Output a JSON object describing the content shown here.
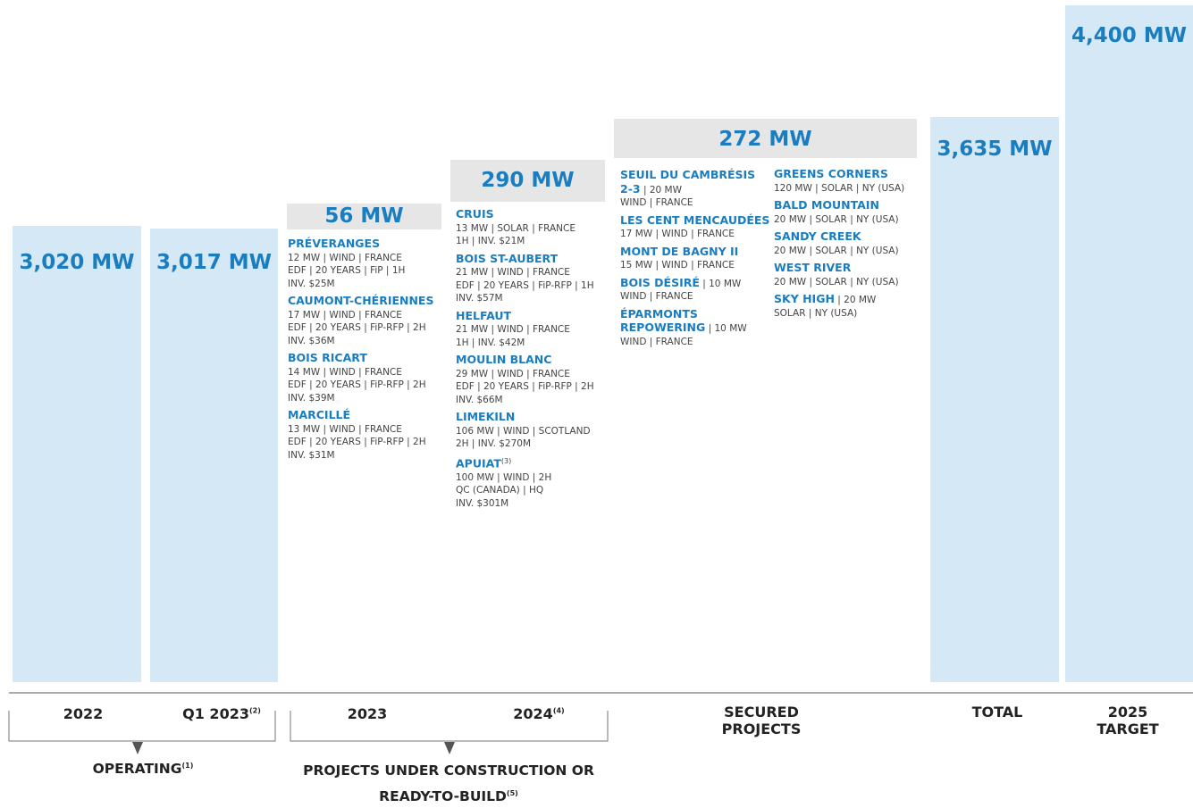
{
  "columns": [
    {
      "value": "3,020 MW",
      "category": "2022"
    },
    {
      "value": "3,017 MW",
      "category": "Q1 2023",
      "sup": "(2)"
    },
    {
      "value": "56 MW",
      "category": "2023"
    },
    {
      "value": "290 MW",
      "category": "2024",
      "sup": "(4)"
    },
    {
      "value": "272 MW",
      "category": "SECURED PROJECTS"
    },
    {
      "value": "3,635 MW",
      "category": "TOTAL"
    },
    {
      "value": "4,400 MW",
      "category": "2025 TARGET"
    }
  ],
  "projects": [
    [
      {
        "name": "PRÉVERANGES",
        "lines": [
          "12 MW | WIND | FRANCE",
          "EDF | 20 YEARS | FiP | 1H",
          "INV. $25M"
        ]
      },
      {
        "name": "CAUMONT-CHÉRIENNES",
        "lines": [
          "17 MW | WIND | FRANCE",
          "EDF | 20 YEARS | FiP-RFP | 2H",
          "INV. $36M"
        ]
      },
      {
        "name": "BOIS RICART",
        "lines": [
          "14 MW | WIND | FRANCE",
          "EDF | 20 YEARS | FiP-RFP | 2H",
          "INV. $39M"
        ]
      },
      {
        "name": "MARCILLÉ",
        "lines": [
          "13 MW | WIND | FRANCE",
          "EDF | 20 YEARS | FiP-RFP | 2H",
          "INV. $31M"
        ]
      }
    ],
    [
      {
        "name": "CRUIS",
        "lines": [
          "13 MW | SOLAR | FRANCE",
          "1H | INV. $21M"
        ]
      },
      {
        "name": "BOIS ST-AUBERT",
        "lines": [
          "21 MW | WIND | FRANCE",
          "EDF | 20 YEARS | FiP-RFP | 1H",
          "INV. $57M"
        ]
      },
      {
        "name": "HELFAUT",
        "lines": [
          "21 MW | WIND | FRANCE",
          "1H | INV. $42M"
        ]
      },
      {
        "name": "MOULIN BLANC",
        "lines": [
          "29 MW | WIND | FRANCE",
          "EDF | 20 YEARS | FiP-RFP | 2H",
          "INV. $66M"
        ]
      },
      {
        "name": "LIMEKILN",
        "lines": [
          "106 MW | WIND | SCOTLAND",
          "2H | INV. $270M"
        ]
      },
      {
        "name": "APUIAT",
        "sup": "(3)",
        "lines": [
          "100 MW | WIND | 2H",
          "QC (CANADA) | HQ",
          "INV. $301M"
        ]
      }
    ],
    [
      {
        "name": "SEUIL DU CAMBRÉSIS 2-3",
        "inline": "| 20 MW",
        "lines": [
          "WIND | FRANCE"
        ]
      },
      {
        "name": "LES CENT MENCAUDÉES",
        "lines": [
          "17 MW | WIND | FRANCE"
        ]
      },
      {
        "name": "MONT DE BAGNY II",
        "lines": [
          "15 MW | WIND | FRANCE"
        ]
      },
      {
        "name": "BOIS DÉSIRÉ",
        "inline": "| 10 MW",
        "lines": [
          "WIND | FRANCE"
        ]
      },
      {
        "name": "ÉPARMONTS REPOWERING",
        "inline": "| 10 MW",
        "lines": [
          "WIND | FRANCE"
        ]
      }
    ],
    [
      {
        "name": "GREENS CORNERS",
        "lines": [
          "120 MW | SOLAR | NY (USA)"
        ]
      },
      {
        "name": "BALD MOUNTAIN",
        "lines": [
          "20 MW | SOLAR | NY (USA)"
        ]
      },
      {
        "name": "SANDY CREEK",
        "lines": [
          "20 MW | SOLAR | NY (USA)"
        ]
      },
      {
        "name": "WEST RIVER",
        "lines": [
          "20 MW | SOLAR | NY (USA)"
        ]
      },
      {
        "name": "SKY HIGH",
        "inline": "| 20 MW",
        "lines": [
          "SOLAR | NY (USA)"
        ]
      }
    ]
  ],
  "groups": [
    {
      "label": "OPERATING",
      "sup": "(1)"
    },
    {
      "label": "PROJECTS UNDER CONSTRUCTION OR READY-TO-BUILD",
      "sup": "(5)"
    }
  ]
}
